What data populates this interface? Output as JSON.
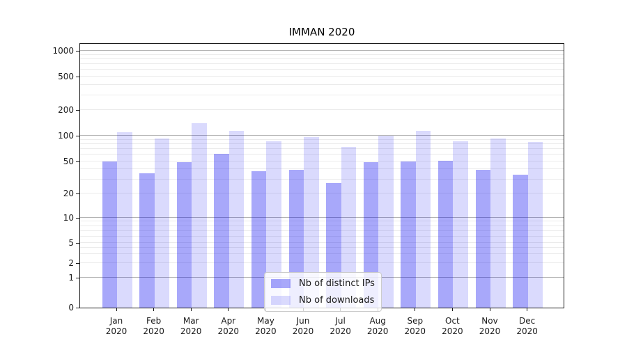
{
  "chart_data": {
    "type": "bar",
    "title": "IMMAN 2020",
    "categories": [
      "Jan",
      "Feb",
      "Mar",
      "Apr",
      "May",
      "Jun",
      "Jul",
      "Aug",
      "Sep",
      "Oct",
      "Nov",
      "Dec"
    ],
    "x_year_label": "2020",
    "series": [
      {
        "name": "Nb of distinct IPs",
        "color": "rgba(0,0,240,0.34)",
        "values": [
          50,
          36,
          49,
          62,
          38,
          39,
          27,
          49,
          50,
          51,
          39,
          34
        ]
      },
      {
        "name": "Nb of downloads",
        "color": "rgba(0,0,240,0.145)",
        "values": [
          110,
          93,
          140,
          115,
          86,
          96,
          74,
          100,
          115,
          86,
          93,
          85
        ]
      }
    ],
    "yticks": [
      0,
      1,
      2,
      5,
      10,
      20,
      50,
      100,
      200,
      500,
      1000
    ],
    "ylim": [
      0,
      1200
    ],
    "yscale": "symlog",
    "xlabel": "",
    "ylabel": "",
    "grid": true,
    "legend_position": "lower center"
  }
}
